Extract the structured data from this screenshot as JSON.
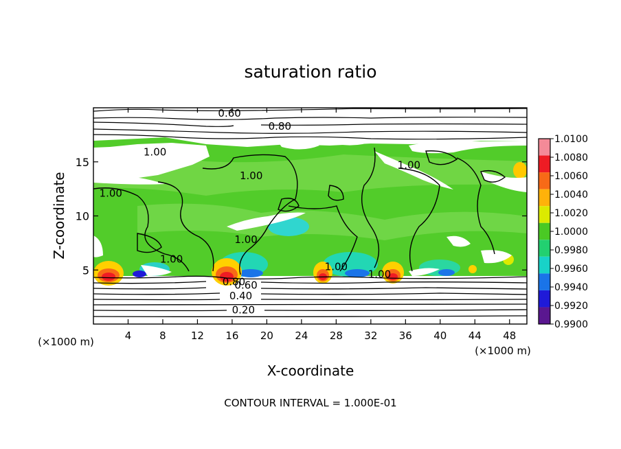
{
  "chart_data": {
    "type": "heatmap",
    "title": "saturation ratio",
    "xlabel": "X-coordinate",
    "ylabel": "Z-coordinate",
    "x_units": "(×1000 m)",
    "y_units": "(×1000 m)",
    "xlim": [
      0,
      50
    ],
    "ylim": [
      0,
      20
    ],
    "x_ticks": [
      4,
      8,
      12,
      16,
      20,
      24,
      28,
      32,
      36,
      40,
      44,
      48
    ],
    "y_ticks": [
      5,
      10,
      15
    ],
    "footer": "CONTOUR INTERVAL = 1.000E-01",
    "colorbar": {
      "levels": [
        "1.0100",
        "1.0080",
        "1.0060",
        "1.0040",
        "1.0020",
        "1.0000",
        "0.9980",
        "0.9960",
        "0.9940",
        "0.9920",
        "0.9900"
      ],
      "colors": [
        "#f48a98",
        "#ee1c24",
        "#f76a17",
        "#ffb20a",
        "#dcea00",
        "#4ac924",
        "#22d070",
        "#18d2c8",
        "#1a74e8",
        "#1f1ad8",
        "#5a1790"
      ]
    },
    "contour_labels": [
      {
        "text": "0.60",
        "x": 15.7,
        "z": 19.5
      },
      {
        "text": "0.80",
        "x": 21.5,
        "z": 18.3
      },
      {
        "text": "1.00",
        "x": 7.1,
        "z": 15.9
      },
      {
        "text": "1.00",
        "x": 18.2,
        "z": 13.7
      },
      {
        "text": "1.00",
        "x": 2.0,
        "z": 12.1
      },
      {
        "text": "1.00",
        "x": 36.4,
        "z": 14.7
      },
      {
        "text": "1.00",
        "x": 17.6,
        "z": 7.8
      },
      {
        "text": "1.00",
        "x": 9.0,
        "z": 6.0
      },
      {
        "text": "1.00",
        "x": 28.0,
        "z": 5.3
      },
      {
        "text": "1.00",
        "x": 33.0,
        "z": 4.6
      },
      {
        "text": "0.80",
        "x": 16.2,
        "z": 3.9
      },
      {
        "text": "0.60",
        "x": 17.6,
        "z": 3.6
      },
      {
        "text": "0.40",
        "x": 17.0,
        "z": 2.6
      },
      {
        "text": "0.20",
        "x": 17.3,
        "z": 1.3
      }
    ]
  }
}
